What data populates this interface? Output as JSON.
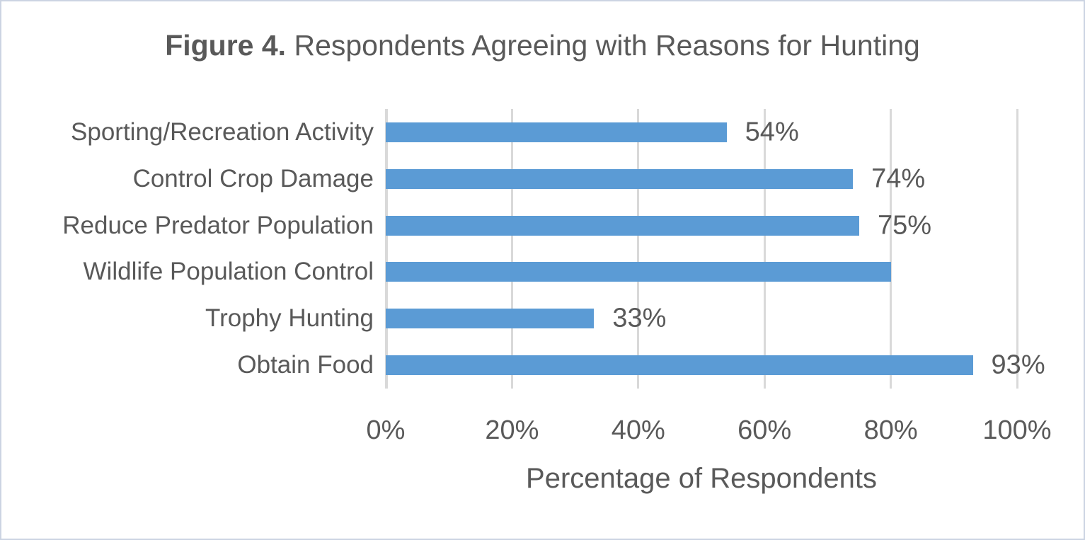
{
  "figure": {
    "title_bold": "Figure 4.",
    "title_rest": " Respondents Agreeing with Reasons for Hunting"
  },
  "chart_data": {
    "type": "bar",
    "orientation": "horizontal",
    "title": "Figure 4. Respondents Agreeing with Reasons for Hunting",
    "categories": [
      "Sporting/Recreation Activity",
      "Control Crop Damage",
      "Reduce Predator Population",
      "Wildlife Population Control",
      "Trophy Hunting",
      "Obtain Food"
    ],
    "values": [
      54,
      74,
      75,
      80,
      33,
      93
    ],
    "data_labels": [
      "54%",
      "74%",
      "75%",
      "",
      "33%",
      "93%"
    ],
    "xlabel": "Percentage of Respondents",
    "ylabel": "",
    "xlim": [
      0,
      100
    ],
    "x_tick_values": [
      0,
      20,
      40,
      60,
      80,
      100
    ],
    "x_tick_labels": [
      "0%",
      "20%",
      "40%",
      "60%",
      "80%",
      "100%"
    ],
    "grid": "vertical-gridlines-on",
    "legend": "none",
    "colors": {
      "bar": "#5b9bd5",
      "text": "#595959",
      "gridline": "#d9d9d9",
      "axis_line": "#d9d9d9",
      "frame_border": "#ccd4e2",
      "background": "#ffffff"
    }
  }
}
